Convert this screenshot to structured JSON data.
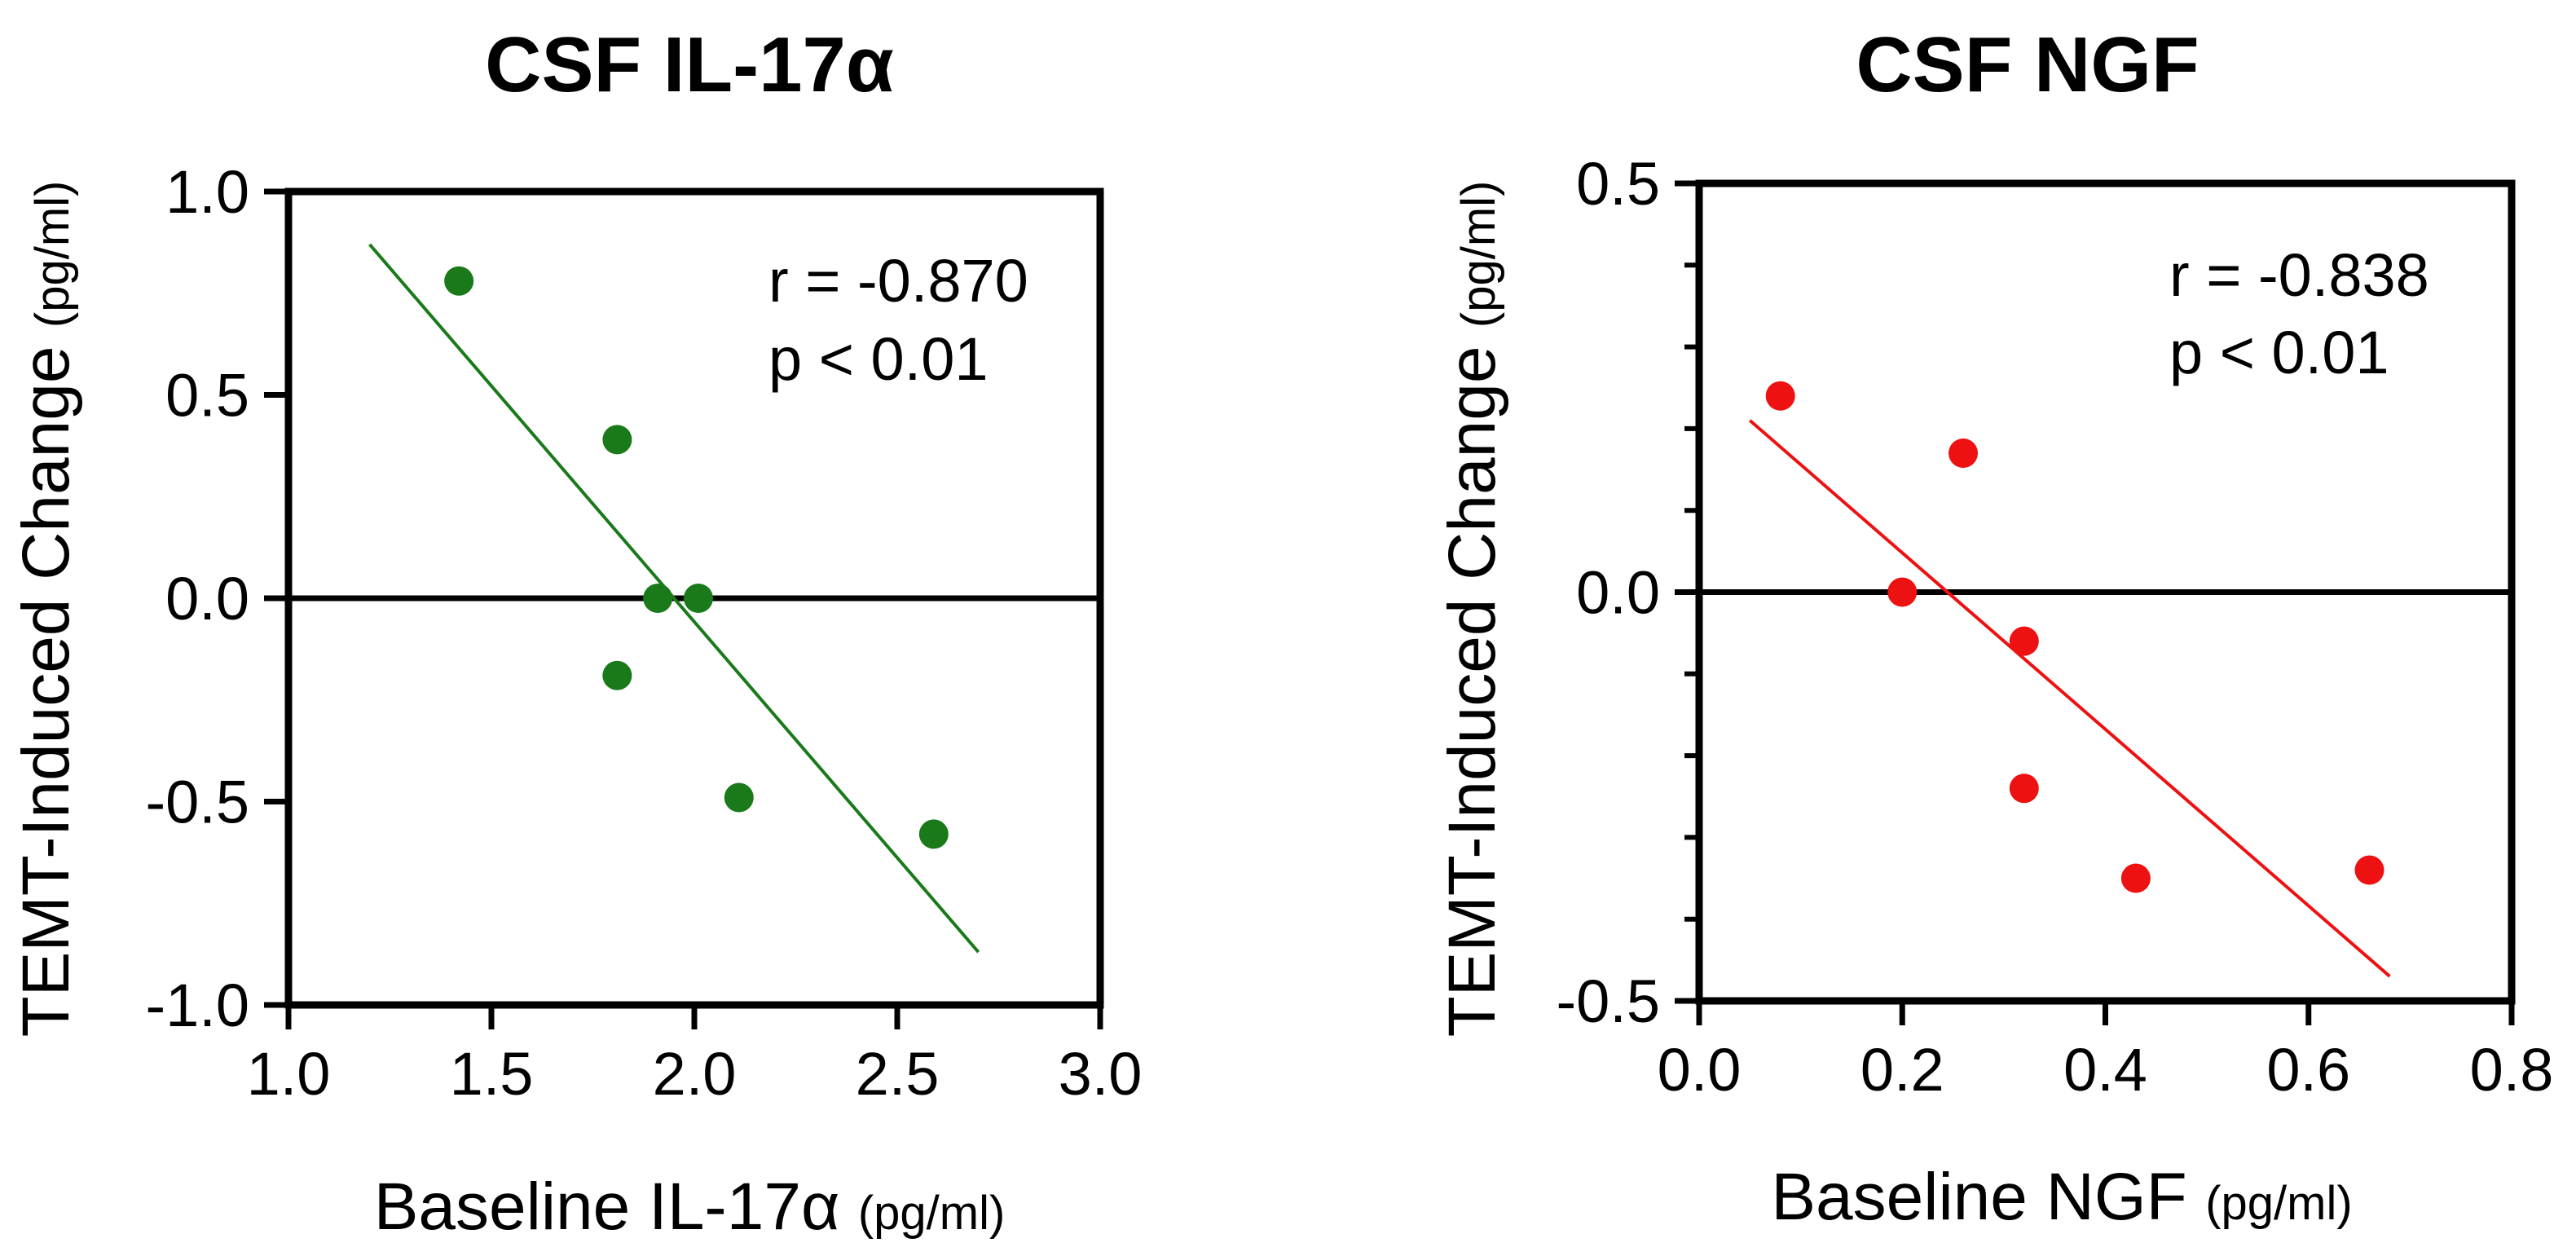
{
  "chart_data": [
    {
      "type": "scatter",
      "title": "CSF IL-17α",
      "xlabel": "Baseline IL-17α",
      "xlabel_unit": "(pg/ml)",
      "ylabel": "TEMT-Induced Change",
      "ylabel_unit": "(pg/ml)",
      "xlim": [
        1.0,
        3.0
      ],
      "ylim": [
        -1.0,
        1.0
      ],
      "xticks": [
        1.0,
        1.5,
        2.0,
        2.5,
        3.0
      ],
      "yticks": [
        -1.0,
        -0.5,
        0.0,
        0.5,
        1.0
      ],
      "xtick_labels": [
        "1.0",
        "1.5",
        "2.0",
        "2.5",
        "3.0"
      ],
      "ytick_labels": [
        "-1.0",
        "-0.5",
        "0.0",
        "0.5",
        "1.0"
      ],
      "color": "#1a7a1a",
      "points": [
        {
          "x": 1.42,
          "y": 0.78
        },
        {
          "x": 1.81,
          "y": 0.39
        },
        {
          "x": 1.91,
          "y": 0.0
        },
        {
          "x": 2.01,
          "y": 0.0
        },
        {
          "x": 1.81,
          "y": -0.19
        },
        {
          "x": 2.11,
          "y": -0.49
        },
        {
          "x": 2.59,
          "y": -0.58
        }
      ],
      "fit_line": {
        "x": [
          1.2,
          2.7
        ],
        "y": [
          0.87,
          -0.87
        ]
      },
      "zero_line": true,
      "stats": [
        "r = -0.870",
        "p < 0.01"
      ]
    },
    {
      "type": "scatter",
      "title": "CSF NGF",
      "xlabel": "Baseline NGF",
      "xlabel_unit": "(pg/ml)",
      "ylabel": "TEMT-Induced Change",
      "ylabel_unit": "(pg/ml)",
      "xlim": [
        0.0,
        0.8
      ],
      "ylim": [
        -0.5,
        0.5
      ],
      "xticks": [
        0.0,
        0.2,
        0.4,
        0.6,
        0.8
      ],
      "yticks": [
        -0.5,
        0.0,
        0.5
      ],
      "minor_yticks": [
        -0.4,
        -0.3,
        -0.2,
        -0.1,
        0.1,
        0.2,
        0.3,
        0.4
      ],
      "xtick_labels": [
        "0.0",
        "0.2",
        "0.4",
        "0.6",
        "0.8"
      ],
      "ytick_labels": [
        "-0.5",
        "0.0",
        "0.5"
      ],
      "color": "#ee1111",
      "points": [
        {
          "x": 0.08,
          "y": 0.24
        },
        {
          "x": 0.26,
          "y": 0.17
        },
        {
          "x": 0.2,
          "y": 0.0
        },
        {
          "x": 0.32,
          "y": -0.06
        },
        {
          "x": 0.32,
          "y": -0.24
        },
        {
          "x": 0.43,
          "y": -0.35
        },
        {
          "x": 0.66,
          "y": -0.34
        }
      ],
      "fit_line": {
        "x": [
          0.05,
          0.68
        ],
        "y": [
          0.21,
          -0.47
        ]
      },
      "zero_line": true,
      "stats": [
        "r = -0.838",
        "p < 0.01"
      ]
    }
  ]
}
